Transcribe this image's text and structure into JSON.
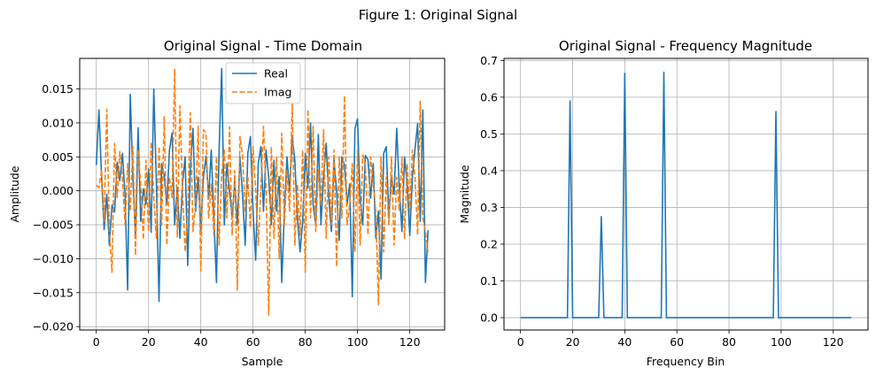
{
  "suptitle": "Figure 1: Original Signal",
  "colors": {
    "real": "#1f77b4",
    "imag": "#ff7f0e",
    "grid": "#b0b0b0",
    "axis": "#000000"
  },
  "chart_data": [
    {
      "type": "line",
      "title": "Original Signal - Time Domain",
      "xlabel": "Sample",
      "ylabel": "Amplitude",
      "xlim": [
        -6.35,
        133.35
      ],
      "ylim": [
        -0.0205,
        0.0195
      ],
      "xticks": [
        0,
        20,
        40,
        60,
        80,
        100,
        120
      ],
      "xtick_labels": [
        "0",
        "20",
        "40",
        "60",
        "80",
        "100",
        "120"
      ],
      "yticks": [
        -0.02,
        -0.015,
        -0.01,
        -0.005,
        0.0,
        0.005,
        0.01,
        0.015
      ],
      "ytick_labels": [
        "−0.020",
        "−0.015",
        "−0.010",
        "−0.005",
        "0.000",
        "0.005",
        "0.010",
        "0.015"
      ],
      "grid": true,
      "legend_position": "upper-center",
      "series": [
        {
          "name": "Real",
          "style": "solid",
          "color": "#1f77b4",
          "values": [
            0.0038,
            0.0119,
            0.0022,
            -0.0057,
            -0.0005,
            -0.008,
            -0.0021,
            -0.0031,
            0.0042,
            0.0015,
            0.0055,
            -0.0005,
            -0.0146,
            0.0142,
            0.002,
            -0.0068,
            0.0093,
            -0.0045,
            0.0003,
            -0.002,
            0.0032,
            -0.0061,
            0.015,
            0.0012,
            -0.0163,
            0.004,
            0.0022,
            -0.002,
            0.006,
            0.0085,
            -0.005,
            0.0005,
            -0.007,
            0.0011,
            0.005,
            -0.011,
            0.0035,
            0.0092,
            -0.003,
            0.002,
            -0.006,
            0.002,
            0.0051,
            -0.0011,
            0.006,
            -0.004,
            -0.0135,
            0.006,
            0.018,
            -0.005,
            0.004,
            0.0,
            -0.004,
            0.0015,
            -0.005,
            0.005,
            -0.0006,
            -0.008,
            0.0055,
            0.008,
            -0.003,
            -0.0102,
            0.004,
            0.0065,
            -0.003,
            0.006,
            0.002,
            -0.005,
            0.0045,
            -0.003,
            0.0021,
            -0.0135,
            -0.003,
            0.005,
            0.0,
            0.008,
            0.0045,
            -0.004,
            -0.009,
            -0.0045,
            0.0055,
            0.0004,
            0.01,
            -0.002,
            -0.005,
            0.0083,
            -0.005,
            0.002,
            0.007,
            -0.001,
            -0.006,
            0.0045,
            0.0,
            -0.0073,
            0.005,
            0.0038,
            -0.002,
            0.001,
            -0.0156,
            0.0091,
            0.0106,
            -0.0013,
            -0.005,
            0.0052,
            0.0046,
            -0.0011,
            0.004,
            -0.007,
            -0.003,
            -0.013,
            0.0055,
            0.0065,
            -0.004,
            0.002,
            -0.0005,
            0.0092,
            0.0004,
            -0.006,
            0.005,
            0.001,
            -0.0066,
            0.002,
            0.0061,
            0.0099,
            -0.0045,
            0.0119,
            -0.0135,
            -0.0058
          ]
        },
        {
          "name": "Imag",
          "style": "dashed",
          "color": "#ff7f0e",
          "values": [
            0.0008,
            0.0005,
            0.003,
            -0.0045,
            0.012,
            -0.006,
            -0.012,
            0.007,
            -0.001,
            0.0058,
            0.002,
            -0.005,
            0.004,
            -0.003,
            0.0065,
            -0.0095,
            0.006,
            0.001,
            -0.0072,
            0.0045,
            -0.006,
            0.0072,
            -0.001,
            -0.007,
            0.0065,
            -0.005,
            0.011,
            -0.008,
            0.002,
            -0.001,
            0.0179,
            -0.0068,
            0.0125,
            0.0,
            -0.009,
            -0.003,
            0.0115,
            -0.006,
            -0.002,
            0.0095,
            -0.0118,
            0.009,
            0.0085,
            -0.004,
            0.001,
            -0.0065,
            0.005,
            -0.008,
            0.0025,
            0.006,
            -0.004,
            0.0094,
            -0.0065,
            0.003,
            -0.0146,
            0.008,
            0.0051,
            -0.003,
            0.002,
            -0.0054,
            0.0065,
            0.0,
            -0.008,
            0.0005,
            0.0095,
            0.0,
            -0.0183,
            0.0065,
            -0.007,
            0.005,
            -0.01,
            0.0085,
            -0.005,
            0.003,
            -0.003,
            0.0131,
            -0.008,
            0.001,
            -0.0065,
            0.006,
            -0.012,
            0.012,
            -0.004,
            0.0095,
            -0.006,
            0.003,
            -0.002,
            0.009,
            -0.007,
            0.005,
            -0.005,
            0.006,
            -0.0112,
            0.005,
            -0.004,
            0.014,
            -0.005,
            -0.002,
            0.004,
            -0.009,
            0.006,
            -0.008,
            0.0053,
            0.004,
            -0.0065,
            0.005,
            0.001,
            -0.003,
            -0.0168,
            0.005,
            -0.009,
            0.002,
            -0.005,
            0.005,
            -0.008,
            0.002,
            -0.003,
            0.005,
            -0.007,
            0.004,
            -0.003,
            0.006,
            0.002,
            -0.0065,
            0.0132,
            -0.004,
            -0.006,
            -0.0092
          ]
        }
      ]
    },
    {
      "type": "line",
      "title": "Original Signal - Frequency Magnitude",
      "xlabel": "Frequency Bin",
      "ylabel": "Magnitude",
      "xlim": [
        -6.35,
        133.35
      ],
      "ylim": [
        -0.0336,
        0.7056
      ],
      "xticks": [
        0,
        20,
        40,
        60,
        80,
        100,
        120
      ],
      "xtick_labels": [
        "0",
        "20",
        "40",
        "60",
        "80",
        "100",
        "120"
      ],
      "yticks": [
        0.0,
        0.1,
        0.2,
        0.3,
        0.4,
        0.5,
        0.6,
        0.7
      ],
      "ytick_labels": [
        "0.0",
        "0.1",
        "0.2",
        "0.3",
        "0.4",
        "0.5",
        "0.6",
        "0.7"
      ],
      "grid": true,
      "series": [
        {
          "name": "Magnitude",
          "style": "solid",
          "color": "#1f77b4",
          "spikes": [
            {
              "bin": 19,
              "value": 0.59
            },
            {
              "bin": 31,
              "value": 0.275
            },
            {
              "bin": 40,
              "value": 0.665
            },
            {
              "bin": 55,
              "value": 0.668
            },
            {
              "bin": 98,
              "value": 0.561
            }
          ],
          "length": 128
        }
      ]
    }
  ]
}
